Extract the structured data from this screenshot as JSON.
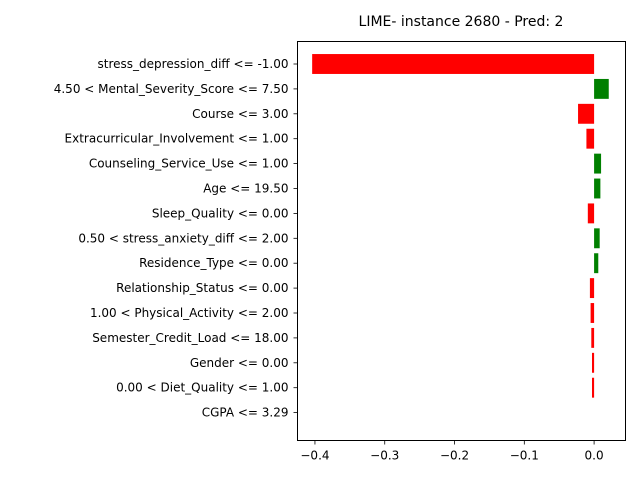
{
  "chart_data": {
    "type": "bar",
    "orientation": "horizontal",
    "title": "LIME- instance 2680 - Pred: 2",
    "xlabel": "",
    "ylabel": "",
    "xlim": [
      -0.425,
      0.045
    ],
    "xticks": [
      -0.4,
      -0.3,
      -0.2,
      -0.1,
      0.0
    ],
    "xtick_labels": [
      "−0.4",
      "−0.3",
      "−0.2",
      "−0.1",
      "0.0"
    ],
    "grid": false,
    "colors": {
      "positive": "#008000",
      "negative": "#ff0000"
    },
    "categories": [
      "stress_depression_diff <= -1.00",
      "4.50 < Mental_Severity_Score <= 7.50",
      "Course <= 3.00",
      "Extracurricular_Involvement <= 1.00",
      "Counseling_Service_Use <= 1.00",
      "Age <= 19.50",
      "Sleep_Quality <= 0.00",
      "0.50 < stress_anxiety_diff <= 2.00",
      "Residence_Type <= 0.00",
      "Relationship_Status <= 0.00",
      "1.00 < Physical_Activity <= 2.00",
      "Semester_Credit_Load <= 18.00",
      "Gender <= 0.00",
      "0.00 < Diet_Quality <= 1.00",
      "CGPA <= 3.29"
    ],
    "values": [
      -0.404,
      0.021,
      -0.023,
      -0.011,
      0.01,
      0.009,
      -0.009,
      0.008,
      0.006,
      -0.006,
      -0.005,
      -0.004,
      -0.003,
      -0.003,
      0.0
    ]
  }
}
